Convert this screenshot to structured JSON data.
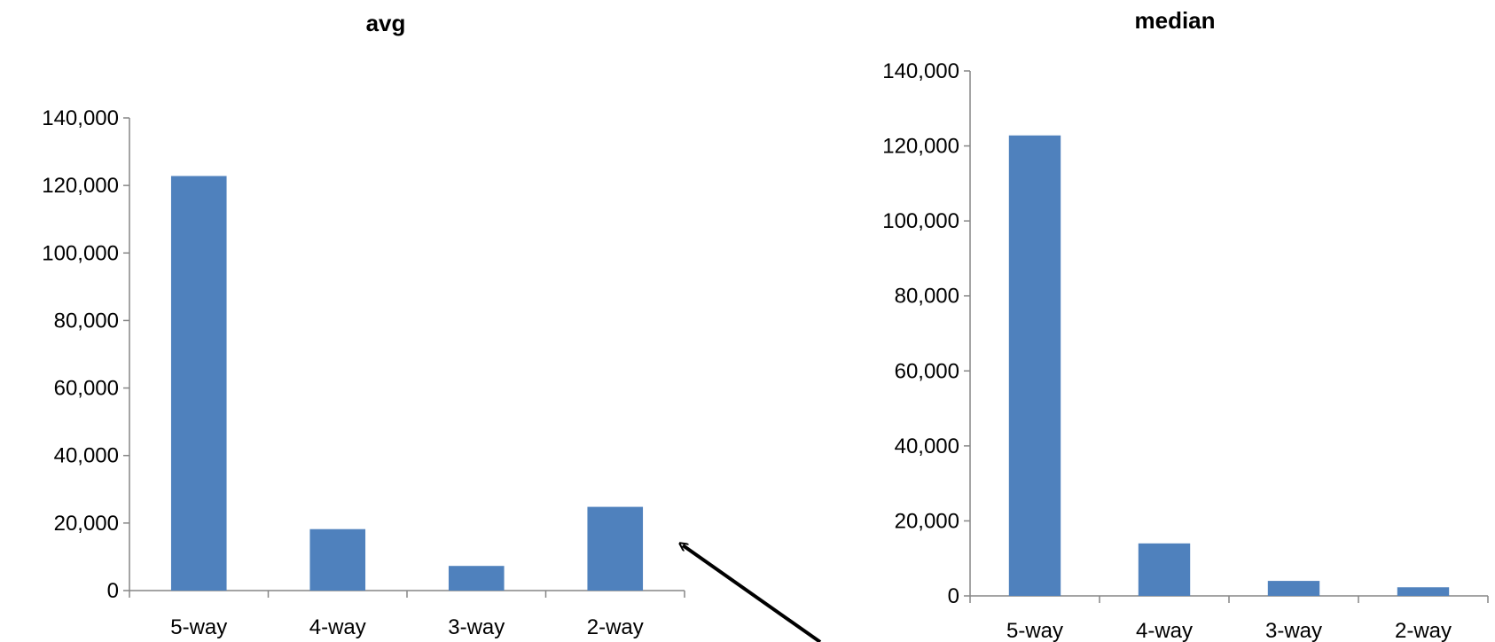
{
  "colors": {
    "bar": "#4F81BD",
    "axis": "#868686",
    "annotation_arrow": "#000000"
  },
  "chart_data": [
    {
      "type": "bar",
      "title": "avg",
      "categories": [
        "5-way",
        "4-way",
        "3-way",
        "2-way"
      ],
      "series": [
        {
          "values": [
            122800,
            18200,
            7300,
            24800
          ]
        }
      ],
      "ylim": [
        0,
        140000
      ],
      "yticks": [
        0,
        20000,
        40000,
        60000,
        80000,
        100000,
        120000,
        140000
      ],
      "ytick_labels": [
        "0",
        "20,000",
        "40,000",
        "60,000",
        "80,000",
        "100,000",
        "120,000",
        "140,000"
      ],
      "grid": false,
      "legend": "none"
    },
    {
      "type": "bar",
      "title": "median",
      "categories": [
        "5-way",
        "4-way",
        "3-way",
        "2-way"
      ],
      "series": [
        {
          "values": [
            122800,
            14000,
            4000,
            2300
          ]
        }
      ],
      "ylim": [
        0,
        140000
      ],
      "yticks": [
        0,
        20000,
        40000,
        60000,
        80000,
        100000,
        120000,
        140000
      ],
      "ytick_labels": [
        "0",
        "20,000",
        "40,000",
        "60,000",
        "80,000",
        "100,000",
        "120,000",
        "140,000"
      ],
      "grid": false,
      "legend": "none"
    }
  ]
}
